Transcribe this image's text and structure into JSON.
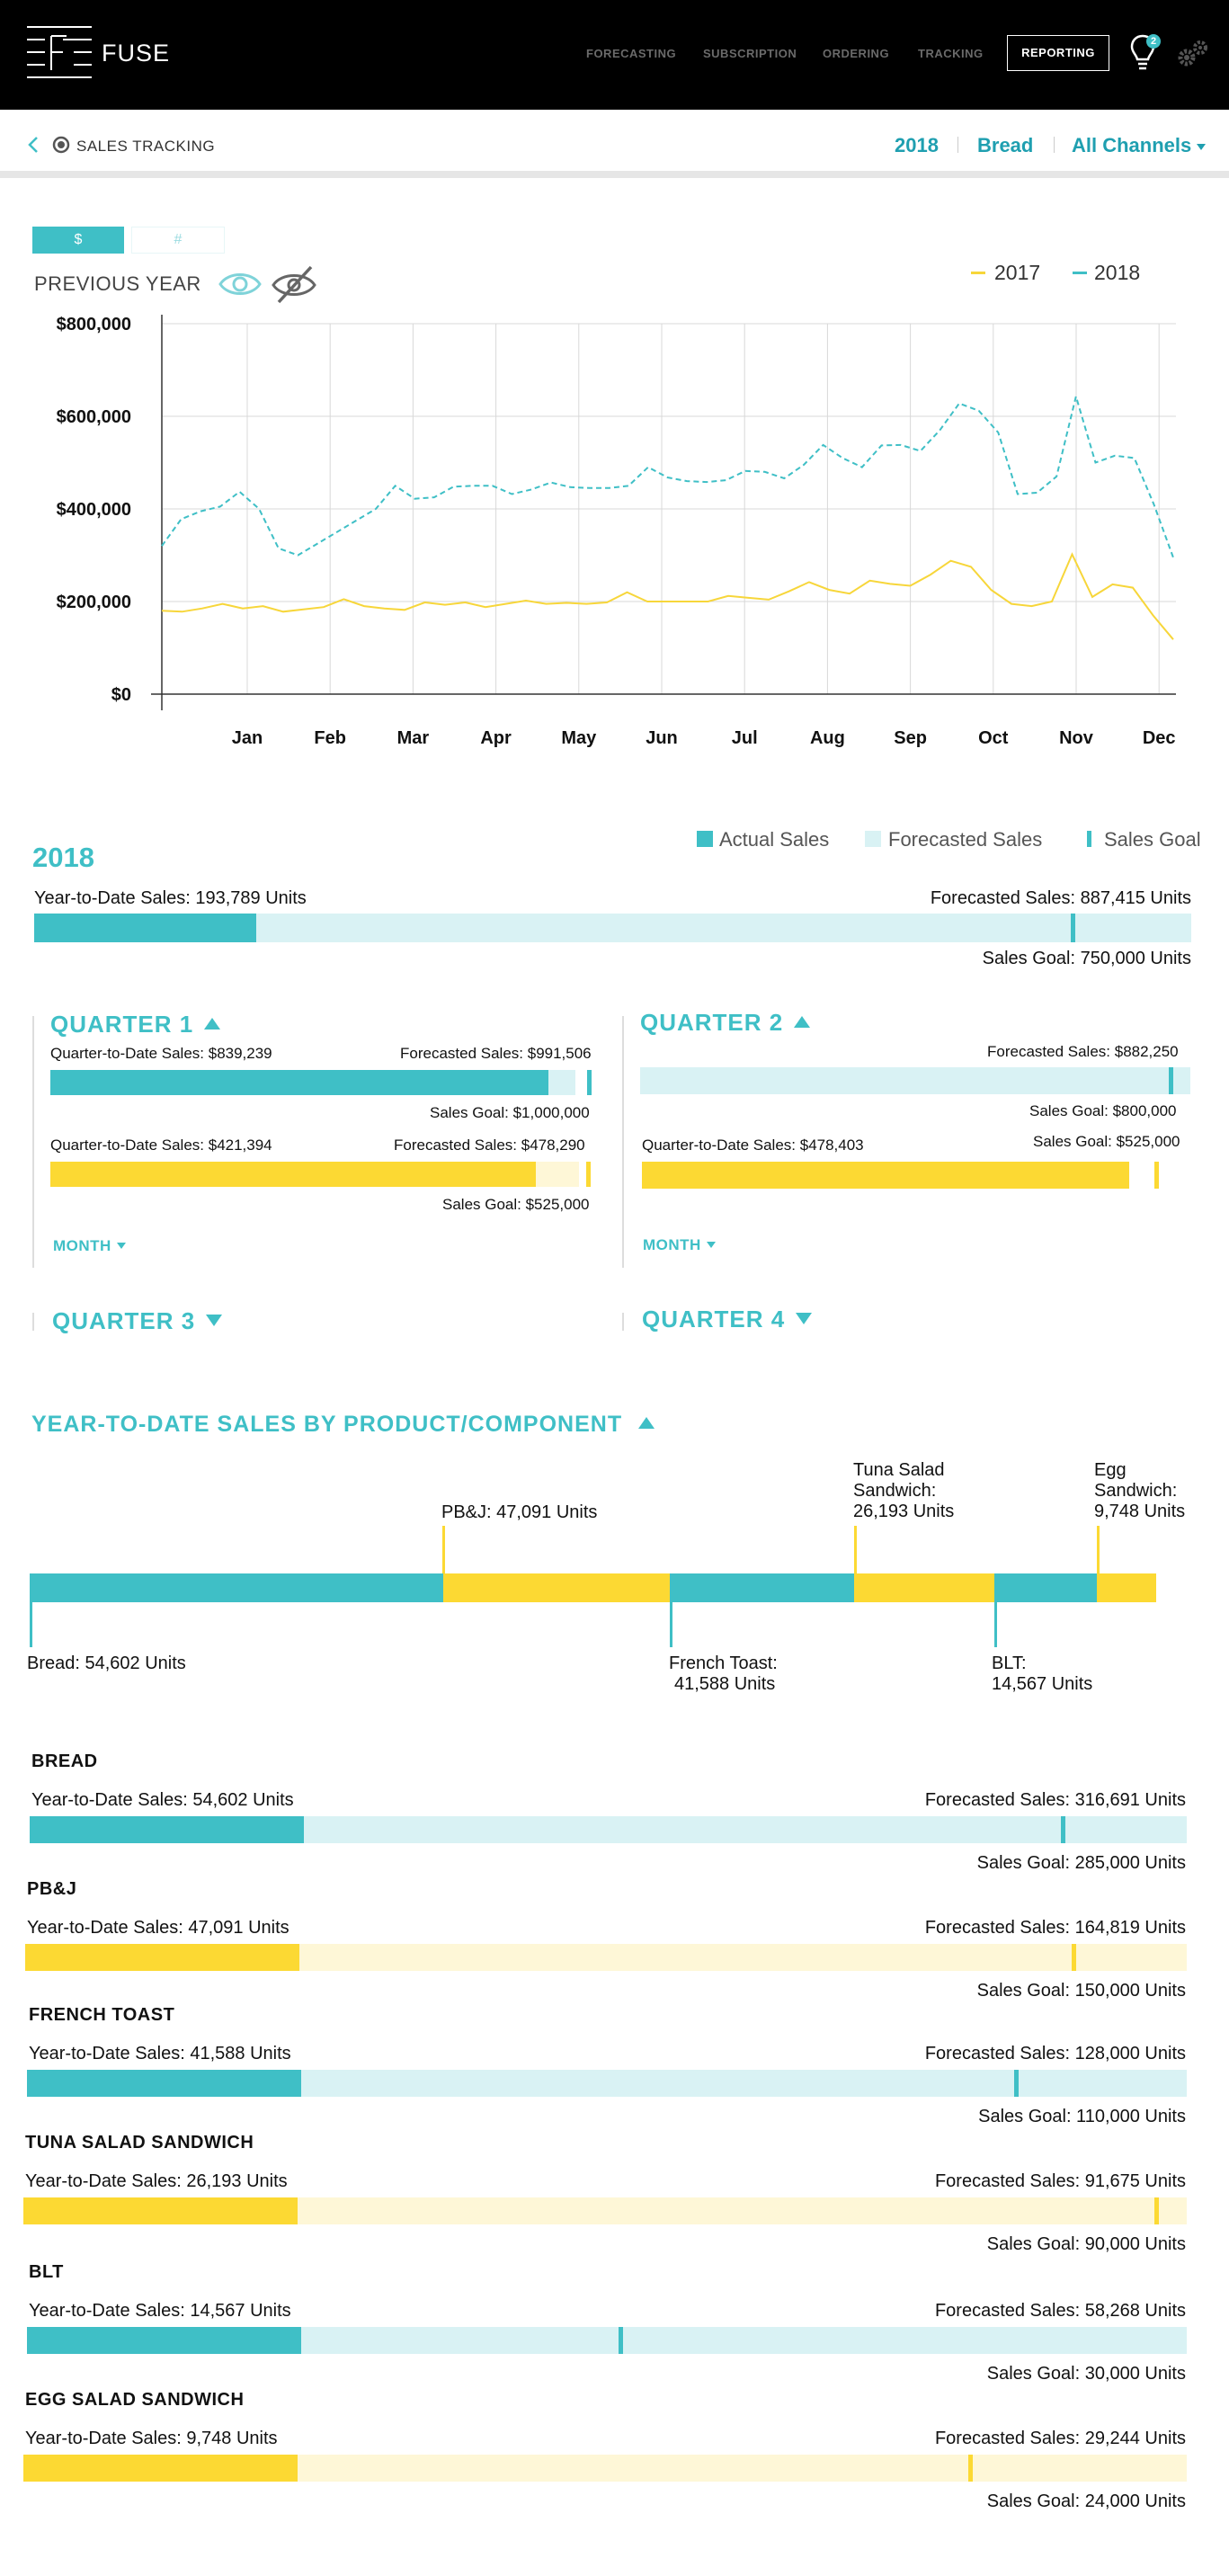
{
  "header": {
    "brand": "FUSE",
    "nav": [
      {
        "label": "FORECASTING"
      },
      {
        "label": "SUBSCRIPTION"
      },
      {
        "label": "ORDERING"
      },
      {
        "label": "TRACKING"
      }
    ],
    "active_nav": "REPORTING",
    "notification_count": "2",
    "icons": {
      "logo": "fuse-logo-icon",
      "bulb": "lightbulb-icon",
      "settings": "gears-icon"
    }
  },
  "subheader": {
    "title": "SALES TRACKING",
    "filters": {
      "year": "2018",
      "product": "Bread",
      "channel": "All Channels"
    }
  },
  "toggle": {
    "dollar": "$",
    "count": "#"
  },
  "previous_year_label": "PREVIOUS YEAR",
  "chart_data": {
    "type": "line",
    "title": "",
    "xlabel": "",
    "ylabel": "",
    "x_ticks": [
      "Jan",
      "Feb",
      "Mar",
      "Apr",
      "May",
      "Jun",
      "Jul",
      "Aug",
      "Sep",
      "Oct",
      "Nov",
      "Dec"
    ],
    "y_ticks": [
      "$800,000",
      "$600,000",
      "$400,000",
      "$200,000",
      "$0"
    ],
    "ylim": [
      0,
      800000
    ],
    "grid": true,
    "legend_position": "top-right",
    "series": [
      {
        "name": "2017",
        "color": "#f7d63a",
        "style": "solid",
        "values": [
          180000,
          178000,
          185000,
          195000,
          185000,
          190000,
          178000,
          183000,
          188000,
          205000,
          190000,
          185000,
          182000,
          198000,
          193000,
          198000,
          188000,
          195000,
          202000,
          195000,
          197000,
          195000,
          198000,
          220000,
          200000,
          200000,
          200000,
          200000,
          212000,
          208000,
          204000,
          222000,
          242000,
          225000,
          217000,
          245000,
          238000,
          234000,
          258000,
          288000,
          275000,
          225000,
          195000,
          190000,
          200000,
          302000,
          210000,
          237000,
          230000,
          170000,
          118000
        ]
      },
      {
        "name": "2018",
        "color": "#3fbfc6",
        "style": "dashed",
        "values": [
          320000,
          378000,
          395000,
          405000,
          437000,
          400000,
          315000,
          300000,
          325000,
          350000,
          375000,
          400000,
          450000,
          422000,
          425000,
          448000,
          450000,
          450000,
          432000,
          442000,
          457000,
          447000,
          445000,
          445000,
          450000,
          490000,
          468000,
          460000,
          458000,
          462000,
          482000,
          480000,
          466000,
          495000,
          538000,
          510000,
          490000,
          537000,
          538000,
          525000,
          570000,
          628000,
          612000,
          565000,
          432000,
          435000,
          470000,
          643000,
          500000,
          515000,
          510000,
          410000,
          295000
        ]
      }
    ]
  },
  "year_summary": {
    "title": "2018",
    "legend": {
      "actual": "Actual Sales",
      "forecast": "Forecasted Sales",
      "goal": "Sales Goal"
    },
    "ytd_label": "Year-to-Date Sales: 193,789 Units",
    "forecast_label": "Forecasted Sales: 887,415 Units",
    "goal_label": "Sales Goal: 750,000 Units",
    "actual": 193789,
    "forecast": 887415,
    "goal": 750000
  },
  "quarters": {
    "q1": {
      "title": "QUARTER 1",
      "row1": {
        "left": "Quarter-to-Date Sales: $839,239",
        "right": "Forecasted Sales: $991,506",
        "goal": "Sales Goal: $1,000,000"
      },
      "row2": {
        "left": "Quarter-to-Date Sales: $421,394",
        "right": "Forecasted Sales: $478,290",
        "goal": "Sales Goal: $525,000"
      },
      "month": "MONTH"
    },
    "q2": {
      "title": "QUARTER 2",
      "row1": {
        "right": "Forecasted Sales: $882,250",
        "goal": "Sales Goal: $800,000"
      },
      "row2": {
        "left": "Quarter-to-Date Sales: $478,403",
        "right": "Sales Goal: $525,000"
      },
      "month": "MONTH"
    },
    "q3": {
      "title": "QUARTER 3"
    },
    "q4": {
      "title": "QUARTER 4"
    }
  },
  "ytd_products": {
    "title": "YEAR-TO-DATE SALES BY PRODUCT/COMPONENT",
    "segments": [
      {
        "name": "Bread",
        "label": "Bread: 54,602 Units",
        "units": 54602
      },
      {
        "name": "PB&J",
        "label": "PB&J: 47,091 Units",
        "units": 47091
      },
      {
        "name": "French Toast",
        "label_lines": [
          "French Toast:",
          "41,588 Units"
        ],
        "units": 41588
      },
      {
        "name": "Tuna Salad Sandwich",
        "label_lines": [
          "Tuna Salad",
          "Sandwich:",
          "26,193 Units"
        ],
        "units": 26193
      },
      {
        "name": "BLT",
        "label_lines": [
          "BLT:",
          "14,567 Units"
        ],
        "units": 14567
      },
      {
        "name": "Egg Sandwich",
        "label_lines": [
          "Egg",
          "Sandwich:",
          "9,748 Units"
        ],
        "units": 9748
      }
    ]
  },
  "products": [
    {
      "title": "BREAD",
      "ytd": "Year-to-Date Sales: 54,602 Units",
      "forecast": "Forecasted Sales: 316,691 Units",
      "goal": "Sales Goal: 285,000 Units",
      "actual_v": 54602,
      "forecast_v": 316691,
      "goal_v": 285000,
      "color": "teal"
    },
    {
      "title": "PB&J",
      "ytd": "Year-to-Date Sales: 47,091 Units",
      "forecast": "Forecasted Sales: 164,819 Units",
      "goal": "Sales Goal: 150,000 Units",
      "actual_v": 47091,
      "forecast_v": 164819,
      "goal_v": 150000,
      "color": "yellow"
    },
    {
      "title": "FRENCH TOAST",
      "ytd": "Year-to-Date Sales: 41,588 Units",
      "forecast": "Forecasted Sales: 128,000 Units",
      "goal": "Sales Goal: 110,000 Units",
      "actual_v": 41588,
      "forecast_v": 128000,
      "goal_v": 110000,
      "color": "teal"
    },
    {
      "title": "TUNA SALAD SANDWICH",
      "ytd": "Year-to-Date Sales: 26,193 Units",
      "forecast": "Forecasted Sales: 91,675 Units",
      "goal": "Sales Goal: 90,000 Units",
      "actual_v": 26193,
      "forecast_v": 91675,
      "goal_v": 90000,
      "color": "yellow"
    },
    {
      "title": "BLT",
      "ytd": "Year-to-Date Sales: 14,567 Units",
      "forecast": "Forecasted Sales: 58,268 Units",
      "goal": "Sales Goal: 30,000 Units",
      "actual_v": 14567,
      "forecast_v": 58268,
      "goal_v": 30000,
      "color": "teal"
    },
    {
      "title": "EGG SALAD SANDWICH",
      "ytd": "Year-to-Date Sales: 9,748 Units",
      "forecast": "Forecasted Sales: 29,244 Units",
      "goal": "Sales Goal: 24,000 Units",
      "actual_v": 9748,
      "forecast_v": 29244,
      "goal_v": 24000,
      "color": "yellow"
    }
  ],
  "colors": {
    "teal": "#3fbfc6",
    "teal_light": "#d9f2f4",
    "yellow": "#fcd933",
    "yellow_light": "#fef7d7"
  }
}
